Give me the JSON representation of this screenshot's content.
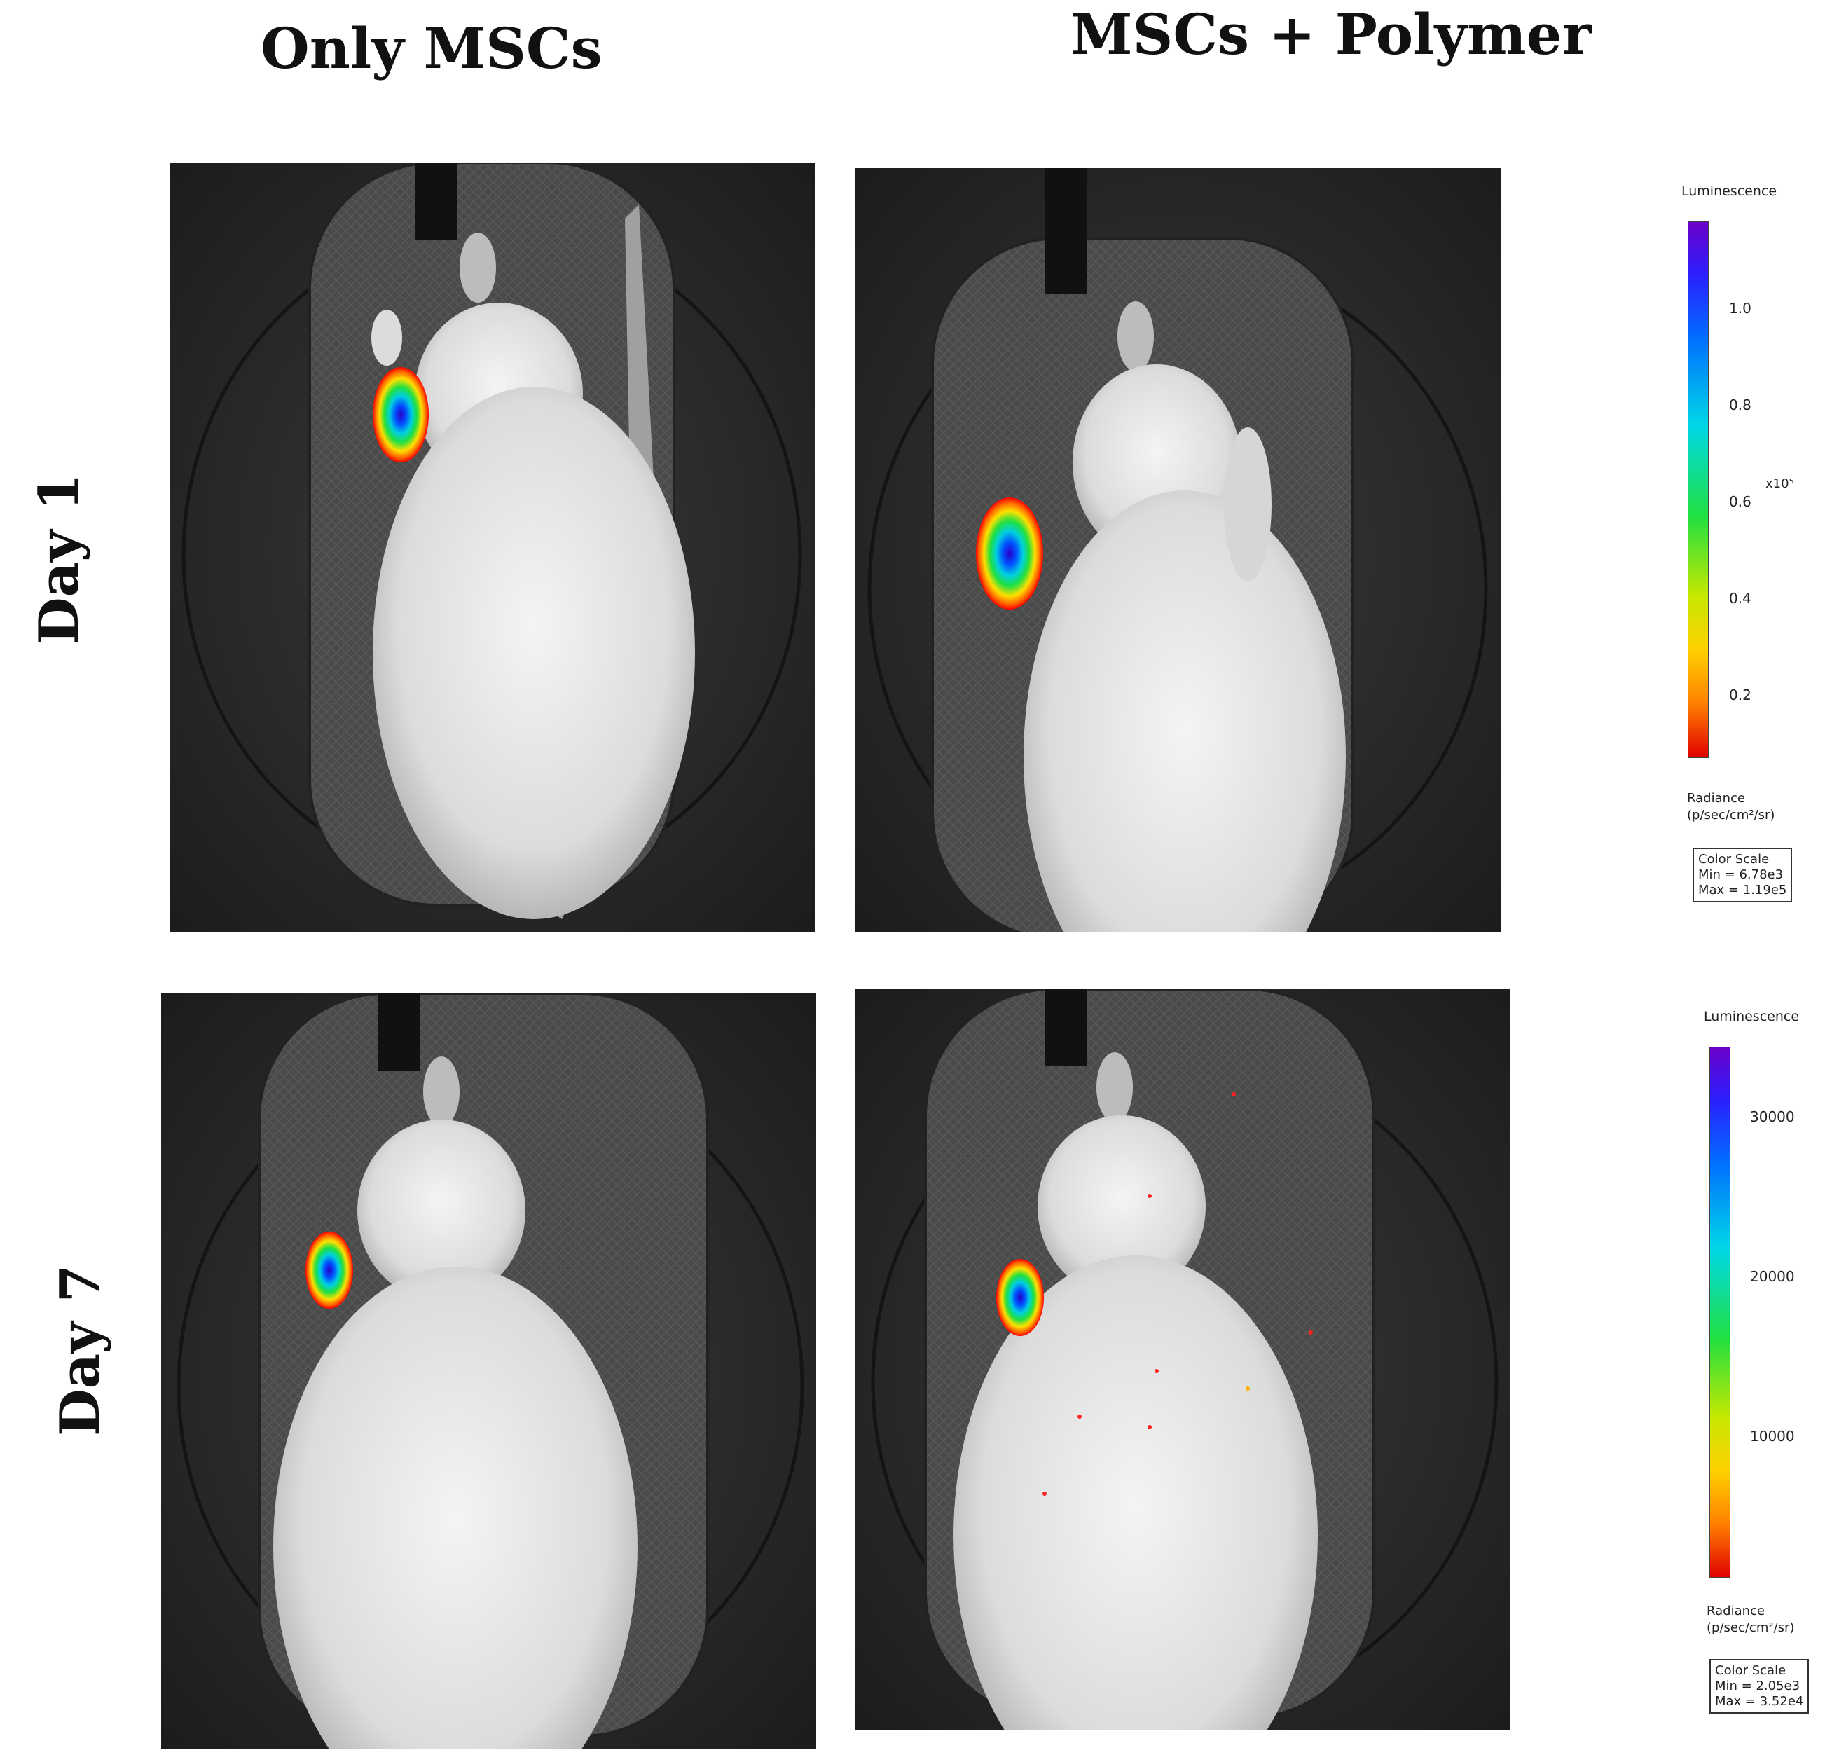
{
  "columns": {
    "left": "Only MSCs",
    "right": "MSCs + Polymer"
  },
  "rows": {
    "top": "Day 1",
    "bottom": "Day 7"
  },
  "panels": [
    {
      "row": "Day 1",
      "column": "Only MSCs",
      "subject": "rat, dorsal view, bioluminescent signal at left forelimb"
    },
    {
      "row": "Day 1",
      "column": "MSCs + Polymer",
      "subject": "rat, dorsal view, bioluminescent signal at left forelimb"
    },
    {
      "row": "Day 7",
      "column": "Only MSCs",
      "subject": "rat, dorsal view, bioluminescent signal at left forelimb"
    },
    {
      "row": "Day 7",
      "column": "MSCs + Polymer",
      "subject": "rat, dorsal view, bioluminescent signal at left forelimb"
    }
  ],
  "colorscale_day1": {
    "title": "Luminescence",
    "ticks": [
      "1.0",
      "0.8",
      "0.6",
      "0.4",
      "0.2"
    ],
    "exponent": "x10⁵",
    "radiance_line1": "Radiance",
    "radiance_line2": "(p/sec/cm²/sr)",
    "box_title": "Color Scale",
    "box_min": "Min = 6.78e3",
    "box_max": "Max = 1.19e5"
  },
  "colorscale_day7": {
    "title": "Luminescence",
    "ticks": [
      "30000",
      "20000",
      "10000"
    ],
    "radiance_line1": "Radiance",
    "radiance_line2": "(p/sec/cm²/sr)",
    "box_title": "Color Scale",
    "box_min": "Min = 2.05e3",
    "box_max": "Max = 3.52e4"
  },
  "colors": {
    "background": "#ffffff",
    "panel_bg": "#2c2c2c",
    "scale_top": "#6a00c8",
    "scale_bottom": "#e00000"
  }
}
